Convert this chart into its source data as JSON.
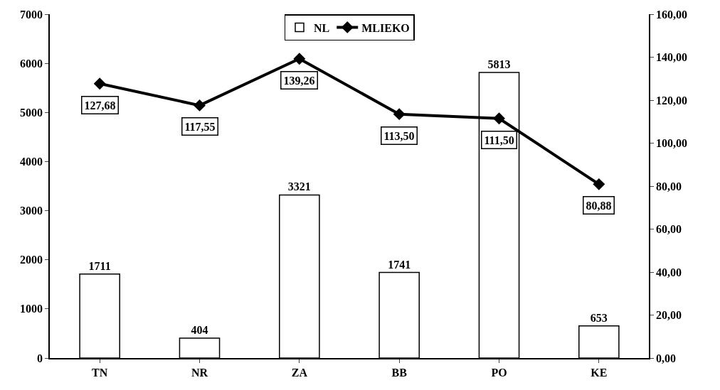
{
  "chart_data": {
    "type": "bar",
    "categories": [
      "TN",
      "NR",
      "ZA",
      "BB",
      "PO",
      "KE"
    ],
    "series": [
      {
        "name": "NL",
        "color": "#ffffff",
        "values": [
          1711,
          404,
          3321,
          1741,
          5813,
          653
        ],
        "value_labels": [
          "1711",
          "404",
          "3321",
          "1741",
          "5813",
          "653"
        ]
      },
      {
        "name": "MLIEKO",
        "type": "line",
        "axis": "y2",
        "color": "#000000",
        "values": [
          127.68,
          117.55,
          139.26,
          113.5,
          111.5,
          80.88
        ],
        "value_labels": [
          "127,68",
          "117,55",
          "139,26",
          "113,50",
          "111,50",
          "80,88"
        ]
      }
    ],
    "ylim": [
      0,
      7000
    ],
    "yticks": [
      0,
      1000,
      2000,
      3000,
      4000,
      5000,
      6000,
      7000
    ],
    "y2lim": [
      0,
      160
    ],
    "y2ticks": [
      {
        "value": 0,
        "label": "0,00"
      },
      {
        "value": 20,
        "label": "20,00"
      },
      {
        "value": 40,
        "label": "40,00"
      },
      {
        "value": 60,
        "label": "60,00"
      },
      {
        "value": 80,
        "label": "80,00"
      },
      {
        "value": 100,
        "label": "100,00"
      },
      {
        "value": 120,
        "label": "120,00"
      },
      {
        "value": 140,
        "label": "140,00"
      },
      {
        "value": 160,
        "label": "160,00"
      }
    ],
    "legend": "top",
    "grid": false,
    "marker": "diamond",
    "line_style": "solid"
  }
}
